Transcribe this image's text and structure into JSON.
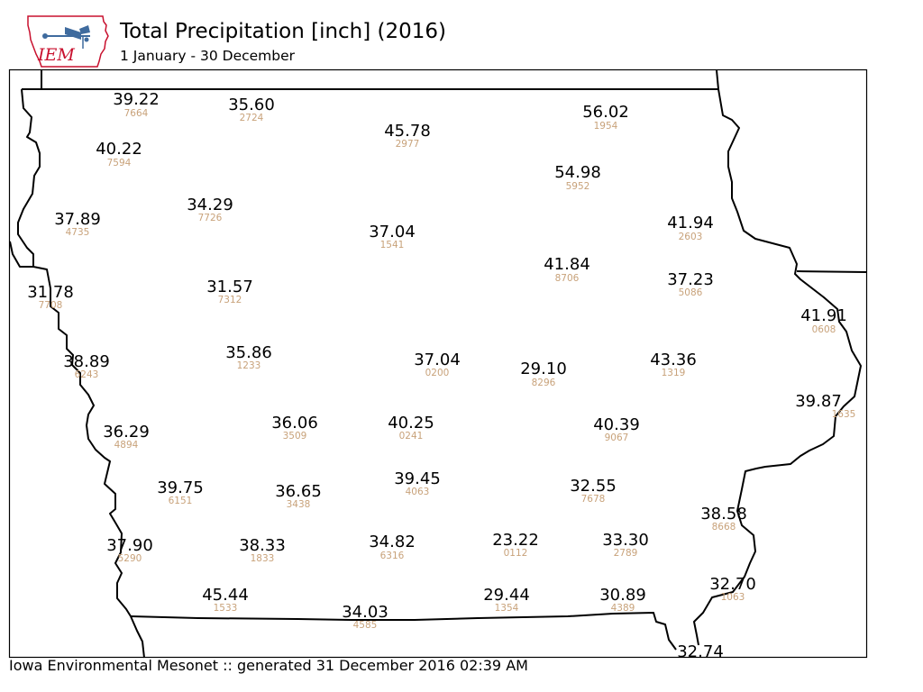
{
  "header": {
    "title": "Total Precipitation [inch] (2016)",
    "subtitle": "1 January - 30 December",
    "logo_text": "IEM"
  },
  "footer": {
    "text": "Iowa Environmental Mesonet :: generated 31 December 2016 02:39 AM"
  },
  "colors": {
    "value_text": "#000000",
    "station_id_text": "#c8a27a",
    "border": "#000000",
    "logo_red": "#c8102e",
    "logo_blue": "#3f6b9e"
  },
  "stations": [
    {
      "value": "39.22",
      "id": "7664"
    },
    {
      "value": "35.60",
      "id": "2724"
    },
    {
      "value": "45.78",
      "id": "2977"
    },
    {
      "value": "56.02",
      "id": "1954"
    },
    {
      "value": "40.22",
      "id": "7594"
    },
    {
      "value": "54.98",
      "id": "5952"
    },
    {
      "value": "34.29",
      "id": "7726"
    },
    {
      "value": "37.89",
      "id": "4735"
    },
    {
      "value": "37.04",
      "id": "1541"
    },
    {
      "value": "41.94",
      "id": "2603"
    },
    {
      "value": "41.84",
      "id": "8706"
    },
    {
      "value": "31.78",
      "id": "7708"
    },
    {
      "value": "31.57",
      "id": "7312"
    },
    {
      "value": "37.23",
      "id": "5086"
    },
    {
      "value": "41.91",
      "id": "0608"
    },
    {
      "value": "38.89",
      "id": "6243"
    },
    {
      "value": "35.86",
      "id": "1233"
    },
    {
      "value": "37.04",
      "id": "0200"
    },
    {
      "value": "29.10",
      "id": "8296"
    },
    {
      "value": "43.36",
      "id": "1319"
    },
    {
      "value": "39.87",
      "id": "1635"
    },
    {
      "value": "36.29",
      "id": "4894"
    },
    {
      "value": "36.06",
      "id": "3509"
    },
    {
      "value": "40.25",
      "id": "0241"
    },
    {
      "value": "40.39",
      "id": "9067"
    },
    {
      "value": "39.75",
      "id": "6151"
    },
    {
      "value": "36.65",
      "id": "3438"
    },
    {
      "value": "39.45",
      "id": "4063"
    },
    {
      "value": "32.55",
      "id": "7678"
    },
    {
      "value": "38.58",
      "id": "8668"
    },
    {
      "value": "37.90",
      "id": "5290"
    },
    {
      "value": "38.33",
      "id": "1833"
    },
    {
      "value": "34.82",
      "id": "6316"
    },
    {
      "value": "23.22",
      "id": "0112"
    },
    {
      "value": "33.30",
      "id": "2789"
    },
    {
      "value": "32.70",
      "id": "1063"
    },
    {
      "value": "45.44",
      "id": "1533"
    },
    {
      "value": "34.03",
      "id": "4585"
    },
    {
      "value": "29.44",
      "id": "1354"
    },
    {
      "value": "30.89",
      "id": "4389"
    },
    {
      "value": "32.74",
      "id": ""
    }
  ]
}
